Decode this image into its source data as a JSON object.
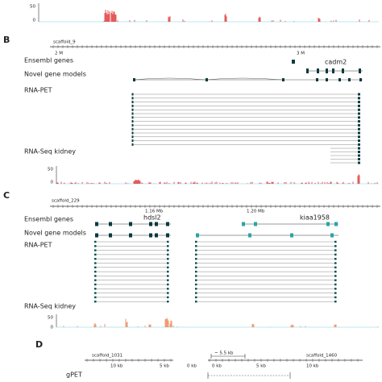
{
  "top": {
    "y_max": "50",
    "y_min": "0"
  },
  "panel_b": {
    "label": "B",
    "scaffold": "scaffold_9",
    "ticks": [
      "2 M",
      "3 M"
    ],
    "tracks": [
      "Ensembl genes",
      "Novel gene models",
      "RNA-PET",
      "RNA-Seq kidney"
    ],
    "gene": "cadm2",
    "y_max": "50",
    "y_min": "0"
  },
  "panel_c": {
    "label": "C",
    "scaffold": "scaffold_229",
    "ticks": [
      "1.16 Mb",
      "1.20 Mb"
    ],
    "tracks": [
      "Ensembl genes",
      "Novel gene models",
      "RNA-PET",
      "RNA-Seq kidney"
    ],
    "genes": [
      "hdsl2",
      "kiaa1958"
    ],
    "y_max": "50",
    "y_min": "0"
  },
  "panel_d": {
    "label": "D",
    "scaffolds": [
      "scaffold_1031",
      "scaffold_1460"
    ],
    "gap": "~ 5.5 kb",
    "ticks": [
      "10 kb",
      "5 kb",
      "0 kb",
      "0 kb",
      "5 kb",
      "10 kb"
    ],
    "track": "gPET"
  }
}
